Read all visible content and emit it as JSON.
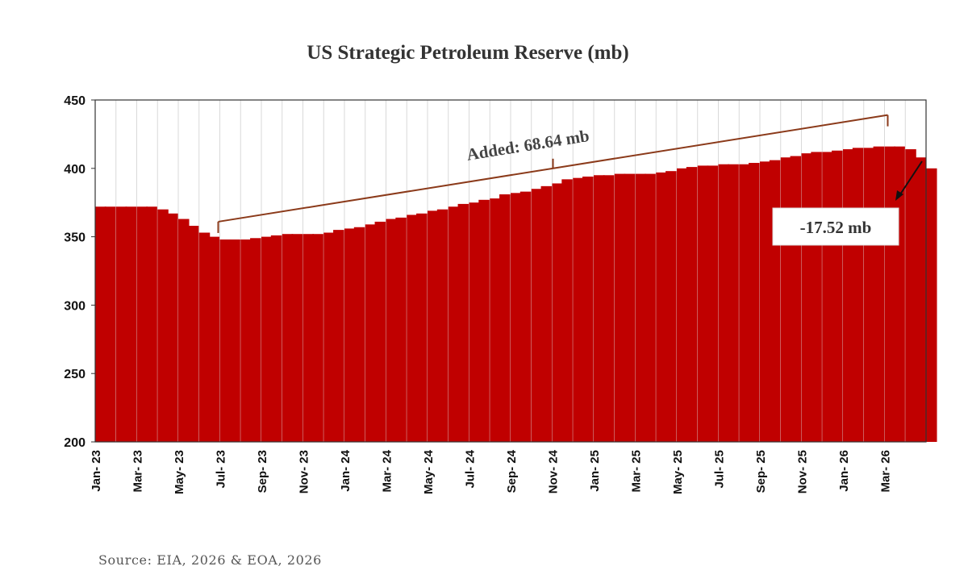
{
  "chart_data": {
    "type": "area",
    "title": "US Strategic Petroleum Reserve (mb)",
    "xlabel": "",
    "ylabel": "",
    "ylim": [
      200,
      450
    ],
    "yticks": [
      200,
      250,
      300,
      350,
      400,
      450
    ],
    "xlim": [
      "2023-01",
      "2026-05"
    ],
    "xtick_labels": [
      "Jan- 23",
      "Mar- 23",
      "May- 23",
      "Jul- 23",
      "Sep- 23",
      "Nov- 23",
      "Jan- 24",
      "Mar- 24",
      "May- 24",
      "Jul- 24",
      "Sep- 24",
      "Nov- 24",
      "Jan- 25",
      "Mar- 25",
      "May- 25",
      "Jul- 25",
      "Sep- 25",
      "Nov- 25",
      "Jan- 26",
      "Mar- 26"
    ],
    "grid": "vertical",
    "legend": "none",
    "bar_color": "#c00000",
    "series": [
      {
        "points": [
          [
            "2023-01-01",
            372
          ],
          [
            "2023-01-15",
            372
          ],
          [
            "2023-02-01",
            372
          ],
          [
            "2023-02-15",
            372
          ],
          [
            "2023-03-01",
            372
          ],
          [
            "2023-03-15",
            372
          ],
          [
            "2023-04-01",
            370
          ],
          [
            "2023-04-15",
            367
          ],
          [
            "2023-05-01",
            363
          ],
          [
            "2023-05-15",
            358
          ],
          [
            "2023-06-01",
            353
          ],
          [
            "2023-06-15",
            350
          ],
          [
            "2023-07-01",
            348
          ],
          [
            "2023-07-15",
            348
          ],
          [
            "2023-08-01",
            348
          ],
          [
            "2023-08-15",
            349
          ],
          [
            "2023-09-01",
            350
          ],
          [
            "2023-09-15",
            351
          ],
          [
            "2023-10-01",
            352
          ],
          [
            "2023-10-15",
            352
          ],
          [
            "2023-11-01",
            352
          ],
          [
            "2023-11-15",
            352
          ],
          [
            "2023-12-01",
            353
          ],
          [
            "2023-12-15",
            355
          ],
          [
            "2024-01-01",
            356
          ],
          [
            "2024-01-15",
            357
          ],
          [
            "2024-02-01",
            359
          ],
          [
            "2024-02-15",
            361
          ],
          [
            "2024-03-01",
            363
          ],
          [
            "2024-03-15",
            364
          ],
          [
            "2024-04-01",
            366
          ],
          [
            "2024-04-15",
            367
          ],
          [
            "2024-05-01",
            369
          ],
          [
            "2024-05-15",
            370
          ],
          [
            "2024-06-01",
            372
          ],
          [
            "2024-06-15",
            374
          ],
          [
            "2024-07-01",
            375
          ],
          [
            "2024-07-15",
            377
          ],
          [
            "2024-08-01",
            378
          ],
          [
            "2024-08-15",
            381
          ],
          [
            "2024-09-01",
            382
          ],
          [
            "2024-09-15",
            383
          ],
          [
            "2024-10-01",
            385
          ],
          [
            "2024-10-15",
            387
          ],
          [
            "2024-11-01",
            389
          ],
          [
            "2024-11-15",
            392
          ],
          [
            "2024-12-01",
            393
          ],
          [
            "2024-12-15",
            394
          ],
          [
            "2025-01-01",
            395
          ],
          [
            "2025-01-15",
            395
          ],
          [
            "2025-02-01",
            396
          ],
          [
            "2025-02-15",
            396
          ],
          [
            "2025-03-01",
            396
          ],
          [
            "2025-03-15",
            396
          ],
          [
            "2025-04-01",
            397
          ],
          [
            "2025-04-15",
            398
          ],
          [
            "2025-05-01",
            400
          ],
          [
            "2025-05-15",
            401
          ],
          [
            "2025-06-01",
            402
          ],
          [
            "2025-06-15",
            402
          ],
          [
            "2025-07-01",
            403
          ],
          [
            "2025-07-15",
            403
          ],
          [
            "2025-08-01",
            403
          ],
          [
            "2025-08-15",
            404
          ],
          [
            "2025-09-01",
            405
          ],
          [
            "2025-09-15",
            406
          ],
          [
            "2025-10-01",
            408
          ],
          [
            "2025-10-15",
            409
          ],
          [
            "2025-11-01",
            411
          ],
          [
            "2025-11-15",
            412
          ],
          [
            "2025-12-01",
            412
          ],
          [
            "2025-12-15",
            413
          ],
          [
            "2026-01-01",
            414
          ],
          [
            "2026-01-15",
            415
          ],
          [
            "2026-02-01",
            415
          ],
          [
            "2026-02-15",
            416
          ],
          [
            "2026-03-01",
            416
          ],
          [
            "2026-03-15",
            416
          ],
          [
            "2026-04-01",
            414
          ],
          [
            "2026-04-15",
            408
          ],
          [
            "2026-05-01",
            400
          ]
        ]
      }
    ],
    "annotations": [
      {
        "text": "Added: 68.64 mb",
        "type": "bracket",
        "from": "2023-07",
        "to": "2026-03"
      },
      {
        "text": "-17.52 mb",
        "type": "boxed-label-with-arrow",
        "target": "2026-04"
      }
    ]
  },
  "source_text": "Source: EIA, 2026 & EOA, 2026"
}
